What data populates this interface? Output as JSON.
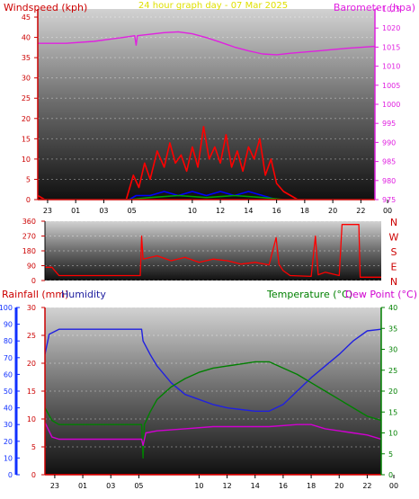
{
  "colors": {
    "wind": "#ff0000",
    "baro": "#e020e0",
    "title": "#e0e000",
    "dir": "#ff0000",
    "rain": "#cc0000",
    "hum": "#2020e0",
    "temp": "#008000",
    "dew": "#d000d0",
    "gust": "#ff0000",
    "avg": "#0000ff",
    "low": "#00a000"
  },
  "chart_data": [
    {
      "type": "line",
      "title": "24 hour graph day - 07 Mar 2025",
      "ylabel": "Windspeed (kph)",
      "y2label": "Barometer (hpa)",
      "x_ticks": [
        "23",
        "01",
        "03",
        "05",
        "10",
        "12",
        "14",
        "16",
        "18",
        "20",
        "22",
        "00"
      ],
      "yticks": [
        0,
        5,
        10,
        15,
        20,
        25,
        30,
        35,
        40,
        45
      ],
      "ylim": [
        0,
        47
      ],
      "y2ticks": [
        975,
        980,
        985,
        990,
        995,
        1000,
        1005,
        1010,
        1015,
        1020,
        1025
      ],
      "y2lim": [
        975,
        1025
      ],
      "xlim": [
        0,
        24
      ],
      "series": [
        {
          "name": "Gust",
          "values": [
            [
              0,
              1
            ],
            [
              0.5,
              0
            ],
            [
              6.3,
              0
            ],
            [
              6.8,
              6
            ],
            [
              7.2,
              3
            ],
            [
              7.6,
              9
            ],
            [
              8.0,
              5
            ],
            [
              8.5,
              12
            ],
            [
              9.0,
              8
            ],
            [
              9.4,
              14
            ],
            [
              9.8,
              9
            ],
            [
              10.2,
              11
            ],
            [
              10.6,
              7
            ],
            [
              11.0,
              13
            ],
            [
              11.4,
              8
            ],
            [
              11.8,
              18
            ],
            [
              12.2,
              10
            ],
            [
              12.6,
              13
            ],
            [
              13.0,
              9
            ],
            [
              13.4,
              16
            ],
            [
              13.8,
              8
            ],
            [
              14.2,
              12
            ],
            [
              14.6,
              7
            ],
            [
              15.0,
              13
            ],
            [
              15.4,
              10
            ],
            [
              15.8,
              15
            ],
            [
              16.2,
              6
            ],
            [
              16.6,
              10
            ],
            [
              17.0,
              4
            ],
            [
              17.5,
              2
            ],
            [
              18.0,
              1
            ],
            [
              18.5,
              0
            ],
            [
              24,
              0
            ]
          ]
        },
        {
          "name": "Average",
          "values": [
            [
              0,
              0
            ],
            [
              6.5,
              0
            ],
            [
              7.0,
              1
            ],
            [
              8.0,
              1
            ],
            [
              9.0,
              2
            ],
            [
              10.0,
              1
            ],
            [
              11.0,
              2
            ],
            [
              12.0,
              1
            ],
            [
              13.0,
              2
            ],
            [
              14.0,
              1
            ],
            [
              15.0,
              2
            ],
            [
              16.0,
              1
            ],
            [
              17.0,
              0
            ],
            [
              24,
              0
            ]
          ]
        },
        {
          "name": "Low",
          "values": [
            [
              0,
              0
            ],
            [
              6.5,
              0
            ],
            [
              8.0,
              0.5
            ],
            [
              10.0,
              1
            ],
            [
              12.0,
              0.5
            ],
            [
              14.0,
              1
            ],
            [
              16.0,
              0.5
            ],
            [
              17.5,
              0
            ],
            [
              24,
              0
            ]
          ]
        },
        {
          "name": "Barometer",
          "values": [
            [
              0,
              1016
            ],
            [
              2,
              1016
            ],
            [
              4,
              1016.5
            ],
            [
              6,
              1017.5
            ],
            [
              6.9,
              1018
            ],
            [
              7.0,
              1015.5
            ],
            [
              7.1,
              1018
            ],
            [
              9,
              1018.8
            ],
            [
              10,
              1019
            ],
            [
              11,
              1018.5
            ],
            [
              12,
              1017.5
            ],
            [
              13,
              1016.3
            ],
            [
              14,
              1015
            ],
            [
              15,
              1014
            ],
            [
              16,
              1013.2
            ],
            [
              17,
              1013
            ],
            [
              18,
              1013.4
            ],
            [
              20,
              1014
            ],
            [
              22,
              1014.7
            ],
            [
              24,
              1015.2
            ]
          ]
        }
      ]
    },
    {
      "type": "line",
      "yticks": [
        0,
        90,
        180,
        270,
        360
      ],
      "ylim": [
        0,
        360
      ],
      "y2labels": [
        "N",
        "W",
        "S",
        "E",
        "N"
      ],
      "xlim": [
        0,
        24
      ],
      "series": [
        {
          "name": "Wind direction",
          "values": [
            [
              0,
              80
            ],
            [
              0.5,
              80
            ],
            [
              1.0,
              30
            ],
            [
              6.8,
              30
            ],
            [
              6.9,
              270
            ],
            [
              7.0,
              130
            ],
            [
              8,
              150
            ],
            [
              9,
              120
            ],
            [
              10,
              140
            ],
            [
              11,
              110
            ],
            [
              12,
              130
            ],
            [
              13,
              120
            ],
            [
              14,
              100
            ],
            [
              15,
              110
            ],
            [
              16,
              95
            ],
            [
              16.5,
              260
            ],
            [
              16.7,
              100
            ],
            [
              17,
              60
            ],
            [
              17.5,
              30
            ],
            [
              19,
              25
            ],
            [
              19.3,
              270
            ],
            [
              19.5,
              35
            ],
            [
              20,
              50
            ],
            [
              21,
              30
            ],
            [
              21.2,
              340
            ],
            [
              22.4,
              340
            ],
            [
              22.5,
              20
            ],
            [
              24,
              20
            ]
          ]
        }
      ]
    },
    {
      "type": "line",
      "y1label": "Rainfall (mm)",
      "y2label": "Humidity",
      "y3label": "Temperature (°C)",
      "y4label": "Dew Point (°C)",
      "rain_ticks": [
        0,
        5,
        10,
        15,
        20,
        25,
        30
      ],
      "rain_lim": [
        0,
        30
      ],
      "hum_ticks": [
        0,
        10,
        20,
        30,
        40,
        50,
        60,
        70,
        80,
        90,
        100
      ],
      "hum_lim": [
        0,
        100
      ],
      "temp_ticks": [
        0,
        5,
        10,
        15,
        20,
        25,
        30,
        35,
        40
      ],
      "temp_lim": [
        0,
        40
      ],
      "xlim": [
        0,
        24
      ],
      "x_ticks": [
        "23",
        "01",
        "03",
        "05",
        "10",
        "12",
        "14",
        "16",
        "18",
        "20",
        "22",
        "00"
      ],
      "series": [
        {
          "name": "Humidity",
          "values": [
            [
              0,
              72
            ],
            [
              0.3,
              84
            ],
            [
              1,
              87
            ],
            [
              3,
              87
            ],
            [
              6.9,
              87
            ],
            [
              7.0,
              80
            ],
            [
              7.5,
              72
            ],
            [
              8,
              65
            ],
            [
              9,
              55
            ],
            [
              10,
              48
            ],
            [
              11,
              45
            ],
            [
              12,
              42
            ],
            [
              13,
              40
            ],
            [
              14,
              39
            ],
            [
              15,
              38
            ],
            [
              16,
              38
            ],
            [
              17,
              42
            ],
            [
              18,
              50
            ],
            [
              19,
              58
            ],
            [
              20,
              65
            ],
            [
              21,
              72
            ],
            [
              22,
              80
            ],
            [
              23,
              86
            ],
            [
              24,
              87
            ]
          ]
        },
        {
          "name": "Temperature",
          "values": [
            [
              0,
              16
            ],
            [
              0.5,
              13
            ],
            [
              1,
              12
            ],
            [
              6.9,
              12
            ],
            [
              7.0,
              4
            ],
            [
              7.1,
              12
            ],
            [
              7.5,
              15
            ],
            [
              8,
              18
            ],
            [
              9,
              21
            ],
            [
              10,
              23
            ],
            [
              11,
              24.5
            ],
            [
              12,
              25.5
            ],
            [
              13,
              26
            ],
            [
              14,
              26.5
            ],
            [
              15,
              27
            ],
            [
              16,
              27
            ],
            [
              17,
              25.5
            ],
            [
              18,
              24
            ],
            [
              19,
              22
            ],
            [
              20,
              20
            ],
            [
              21,
              18
            ],
            [
              22,
              16
            ],
            [
              23,
              14
            ],
            [
              24,
              13
            ]
          ]
        },
        {
          "name": "Dew Point",
          "values": [
            [
              0,
              12.5
            ],
            [
              0.5,
              9
            ],
            [
              1,
              8.5
            ],
            [
              6.9,
              8.5
            ],
            [
              7.0,
              7
            ],
            [
              7.2,
              10
            ],
            [
              8,
              10.5
            ],
            [
              10,
              11
            ],
            [
              12,
              11.5
            ],
            [
              14,
              11.5
            ],
            [
              16,
              11.5
            ],
            [
              18,
              12
            ],
            [
              19,
              12
            ],
            [
              20,
              11
            ],
            [
              21,
              10.5
            ],
            [
              22,
              10
            ],
            [
              23,
              9.5
            ],
            [
              24,
              8.5
            ]
          ]
        },
        {
          "name": "Rainfall",
          "values": [
            [
              0,
              0
            ],
            [
              24,
              0
            ]
          ]
        }
      ]
    }
  ]
}
